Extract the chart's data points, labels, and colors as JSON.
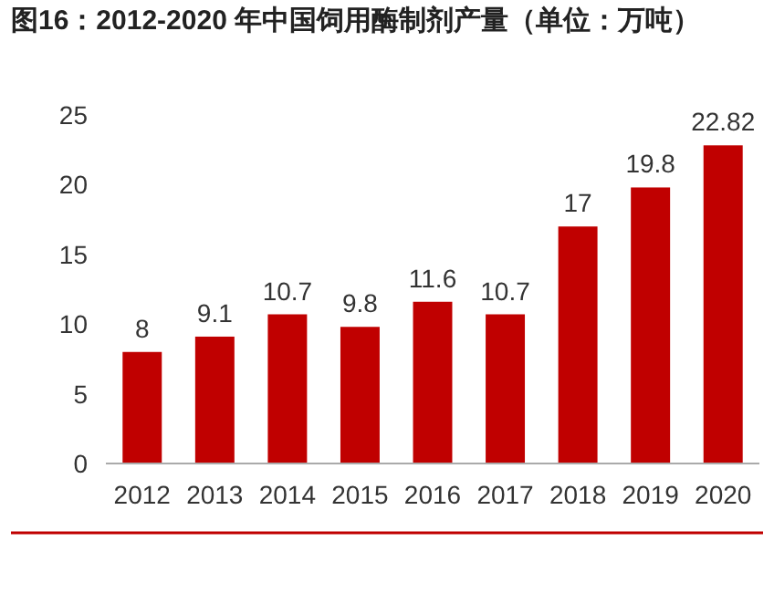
{
  "chart_data": {
    "type": "bar",
    "title": "图16：2012-2020 年中国饲用酶制剂产量（单位：万吨）",
    "categories": [
      "2012",
      "2013",
      "2014",
      "2015",
      "2016",
      "2017",
      "2018",
      "2019",
      "2020"
    ],
    "values": [
      8,
      9.1,
      10.7,
      9.8,
      11.6,
      10.7,
      17,
      19.8,
      22.82
    ],
    "color": "#c00000",
    "ylim": [
      0,
      25
    ],
    "yticks": [
      0,
      5,
      10,
      15,
      20,
      25
    ],
    "data_labels": true
  }
}
